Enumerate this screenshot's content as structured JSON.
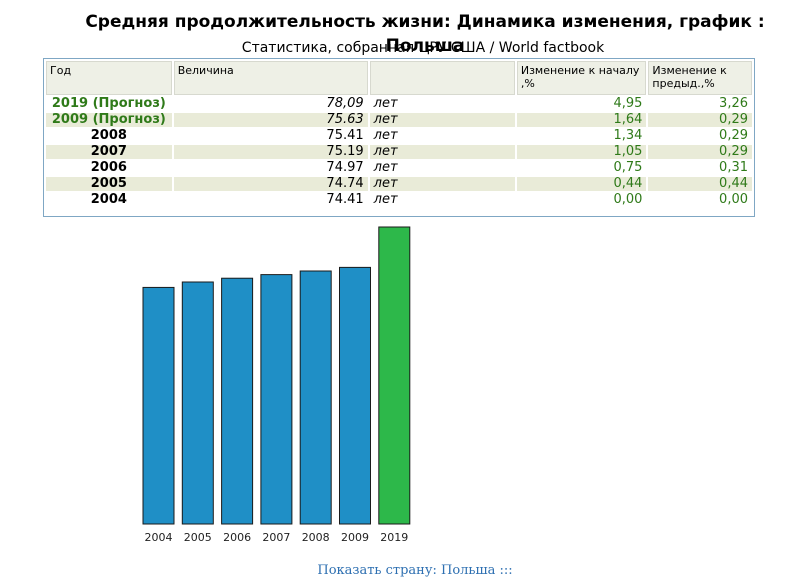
{
  "header": {
    "title": "Средняя продолжительность жизни: Динамика изменения, график : Польша",
    "subtitle": "Статистика, собранная ЦРУ США / World factbook"
  },
  "table": {
    "columns": [
      "Год",
      "Величина",
      "",
      "Изменение к началу ,%",
      "Изменение к предыд.,%"
    ],
    "rows": [
      {
        "year": "2019 (Прогноз)",
        "value": "78,09",
        "unit": "лет",
        "change_start": "4,95",
        "change_prev": "3,26",
        "forecast": true
      },
      {
        "year": "2009 (Прогноз)",
        "value": "75.63",
        "unit": "лет",
        "change_start": "1,64",
        "change_prev": "0,29",
        "forecast": true
      },
      {
        "year": "2008",
        "value": "75.41",
        "unit": "лет",
        "change_start": "1,34",
        "change_prev": "0,29",
        "forecast": false
      },
      {
        "year": "2007",
        "value": "75.19",
        "unit": "лет",
        "change_start": "1,05",
        "change_prev": "0,29",
        "forecast": false
      },
      {
        "year": "2006",
        "value": "74.97",
        "unit": "лет",
        "change_start": "0,75",
        "change_prev": "0,31",
        "forecast": false
      },
      {
        "year": "2005",
        "value": "74.74",
        "unit": "лет",
        "change_start": "0,44",
        "change_prev": "0,44",
        "forecast": false
      },
      {
        "year": "2004",
        "value": "74.41",
        "unit": "лет",
        "change_start": "0,00",
        "change_prev": "0,00",
        "forecast": false
      }
    ]
  },
  "chart_data": {
    "type": "bar",
    "categories": [
      "2004",
      "2005",
      "2006",
      "2007",
      "2008",
      "2009",
      "2019"
    ],
    "values": [
      74.41,
      74.74,
      74.97,
      75.19,
      75.41,
      75.63,
      78.09
    ],
    "colors": [
      "#1f8fc6",
      "#1f8fc6",
      "#1f8fc6",
      "#1f8fc6",
      "#1f8fc6",
      "#1f8fc6",
      "#2db84a"
    ],
    "title": "",
    "xlabel": "",
    "ylabel": "",
    "grid": false
  },
  "footer": {
    "link_text": "Показать страну: Польша :::"
  },
  "colors": {
    "accent_green": "#2f7a19",
    "bar_blue": "#1f8fc6",
    "bar_green": "#2db84a",
    "link_blue": "#2d6fb1"
  }
}
